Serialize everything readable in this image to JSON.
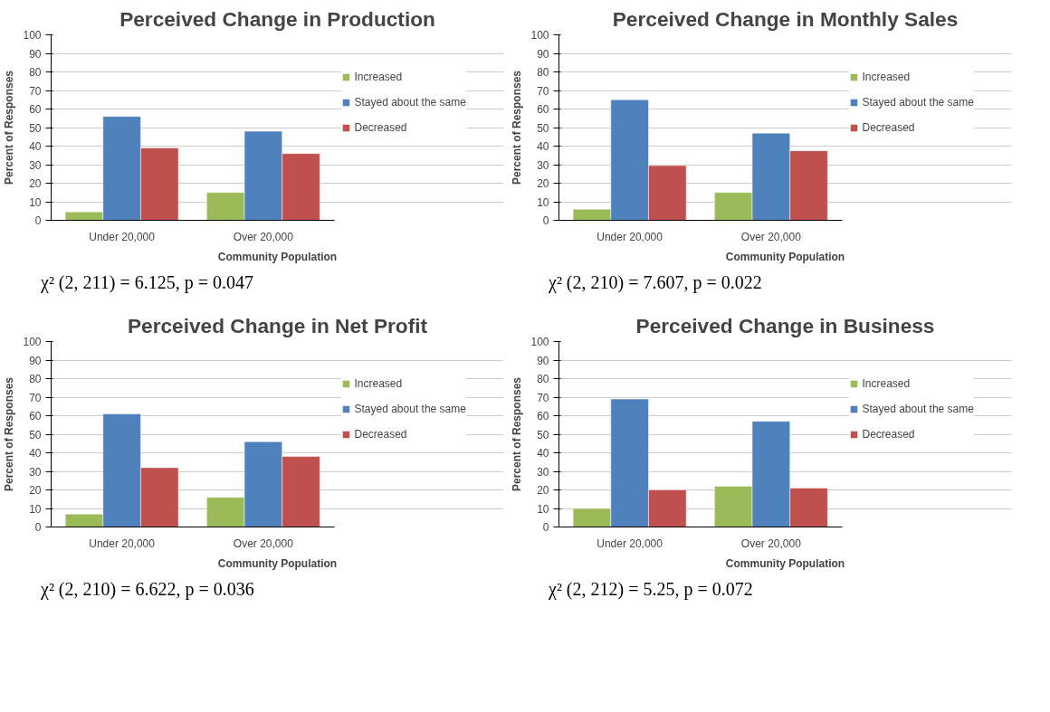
{
  "chart_data": [
    {
      "type": "bar",
      "title": "Perceived Change in Production",
      "xlabel": "Community Population",
      "ylabel": "Percent of Responses",
      "categories": [
        "Under 20,000",
        "Over 20,000"
      ],
      "series": [
        {
          "name": "Increased",
          "color": "#9bbb59",
          "values": [
            4.5,
            15
          ]
        },
        {
          "name": "Stayed about the same",
          "color": "#4f81bd",
          "values": [
            56,
            48
          ]
        },
        {
          "name": "Decreased",
          "color": "#c0504d",
          "values": [
            39,
            36
          ]
        }
      ],
      "ylim": [
        0,
        100
      ],
      "yticks": [
        0,
        10,
        20,
        30,
        40,
        50,
        60,
        70,
        80,
        90,
        100
      ],
      "grid": "y",
      "legend": "right",
      "annotations": [
        "χ² (2, 211) = 6.125, p = 0.047"
      ]
    },
    {
      "type": "bar",
      "title": "Perceived Change in Monthly Sales",
      "xlabel": "Community Population",
      "ylabel": "Percent of Responses",
      "categories": [
        "Under 20,000",
        "Over 20,000"
      ],
      "series": [
        {
          "name": "Increased",
          "color": "#9bbb59",
          "values": [
            6,
            15
          ]
        },
        {
          "name": "Stayed about the same",
          "color": "#4f81bd",
          "values": [
            65,
            47
          ]
        },
        {
          "name": "Decreased",
          "color": "#c0504d",
          "values": [
            29.5,
            37.5
          ]
        }
      ],
      "ylim": [
        0,
        100
      ],
      "yticks": [
        0,
        10,
        20,
        30,
        40,
        50,
        60,
        70,
        80,
        90,
        100
      ],
      "grid": "y",
      "legend": "right",
      "annotations": [
        "χ² (2, 210) = 7.607, p = 0.022"
      ]
    },
    {
      "type": "bar",
      "title": "Perceived Change in Net Profit",
      "xlabel": "Community Population",
      "ylabel": "Percent of Responses",
      "categories": [
        "Under 20,000",
        "Over 20,000"
      ],
      "series": [
        {
          "name": "Increased",
          "color": "#9bbb59",
          "values": [
            7,
            16
          ]
        },
        {
          "name": "Stayed about the same",
          "color": "#4f81bd",
          "values": [
            61,
            46
          ]
        },
        {
          "name": "Decreased",
          "color": "#c0504d",
          "values": [
            32,
            38
          ]
        }
      ],
      "ylim": [
        0,
        100
      ],
      "yticks": [
        0,
        10,
        20,
        30,
        40,
        50,
        60,
        70,
        80,
        90,
        100
      ],
      "grid": "y",
      "legend": "right",
      "annotations": [
        "χ² (2, 210) = 6.622, p = 0.036"
      ]
    },
    {
      "type": "bar",
      "title": "Perceived Change in Business",
      "xlabel": "Community Population",
      "ylabel": "Percent of Responses",
      "categories": [
        "Under 20,000",
        "Over 20,000"
      ],
      "series": [
        {
          "name": "Increased",
          "color": "#9bbb59",
          "values": [
            10,
            22
          ]
        },
        {
          "name": "Stayed about the same",
          "color": "#4f81bd",
          "values": [
            69,
            57
          ]
        },
        {
          "name": "Decreased",
          "color": "#c0504d",
          "values": [
            20,
            21
          ]
        }
      ],
      "ylim": [
        0,
        100
      ],
      "yticks": [
        0,
        10,
        20,
        30,
        40,
        50,
        60,
        70,
        80,
        90,
        100
      ],
      "grid": "y",
      "legend": "right",
      "annotations": [
        "χ² (2, 212) = 5.25, p = 0.072"
      ]
    }
  ]
}
